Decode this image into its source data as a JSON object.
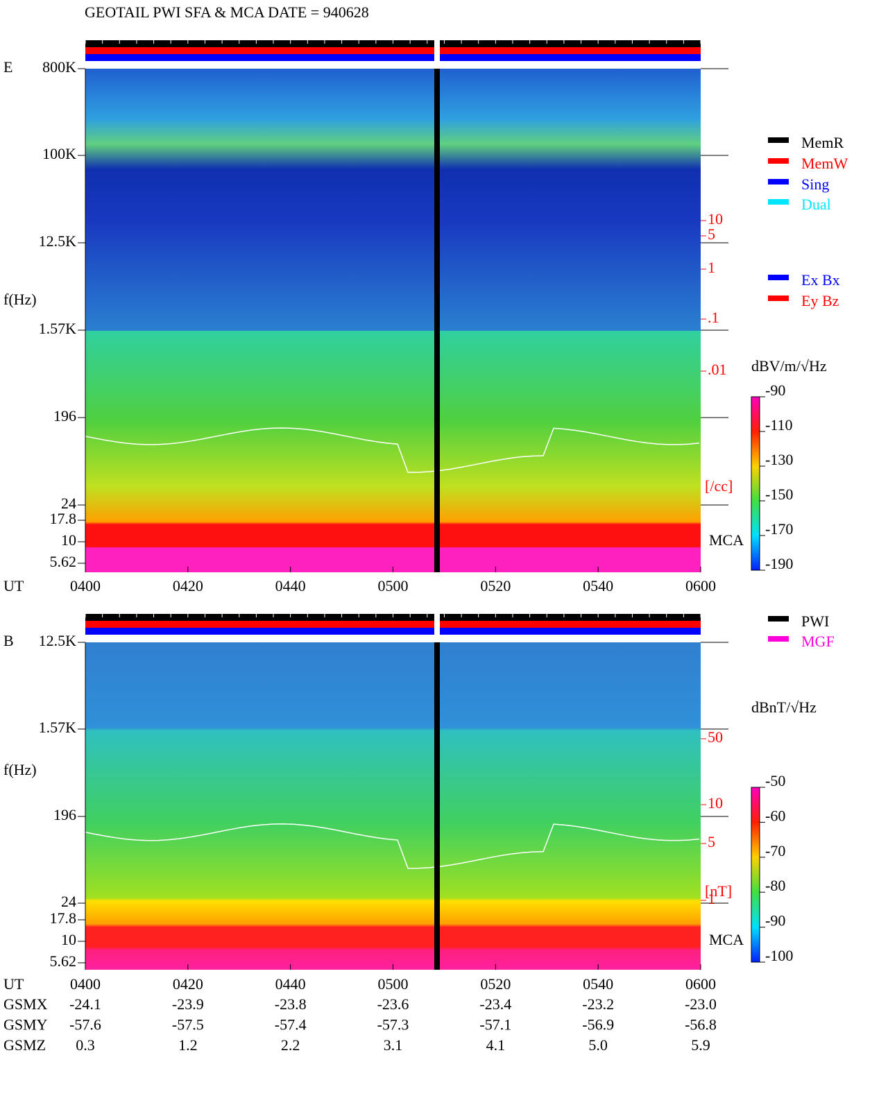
{
  "chart_data": {
    "type": "spectrogram",
    "title": "GEOTAIL  PWI SFA & MCA   DATE = 940628",
    "xlabel": "UT",
    "xticks": [
      "0400",
      "0420",
      "0440",
      "0500",
      "0520",
      "0540",
      "0600"
    ],
    "panels": [
      {
        "label": "E",
        "ylabel": "f(Hz)",
        "yticks": [
          "800K",
          "100K",
          "12.5K",
          "1.57K",
          "196",
          "24",
          "17.8",
          "10",
          "5.62"
        ],
        "density_ticks": [
          "10",
          "5",
          "1",
          ".1",
          ".01"
        ],
        "density_unit": "[/cc]",
        "mca": "MCA",
        "legend": [
          {
            "name": "MemR",
            "color": "#000000"
          },
          {
            "name": "MemW",
            "color": "#ff0000"
          },
          {
            "name": "Sing",
            "color": "#0000ff"
          },
          {
            "name": "Dual",
            "color": "#00e5ff"
          }
        ],
        "legend2": [
          {
            "name": "Ex Bx",
            "color": "#0000ff"
          },
          {
            "name": "Ey Bz",
            "color": "#ff0000"
          }
        ],
        "colorbar": {
          "title": "dBV/m/√Hz",
          "clim": [
            -90,
            -190
          ],
          "ticks": [
            -90,
            -110,
            -130,
            -150,
            -170,
            -190
          ]
        }
      },
      {
        "label": "B",
        "ylabel": "f(Hz)",
        "yticks": [
          "12.5K",
          "1.57K",
          "196",
          "24",
          "17.8",
          "10",
          "5.62"
        ],
        "density_ticks": [
          "50",
          "10",
          "5",
          "1"
        ],
        "density_unit": "[nT]",
        "mca": "MCA",
        "legend": [
          {
            "name": "PWI",
            "color": "#000000"
          },
          {
            "name": "MGF",
            "color": "#ff00dd"
          }
        ],
        "colorbar": {
          "title": "dBnT/√Hz",
          "clim": [
            -50,
            -100
          ],
          "ticks": [
            -50,
            -60,
            -70,
            -80,
            -90,
            -100
          ]
        }
      }
    ],
    "orbit": [
      {
        "label": "GSMX",
        "values": [
          "-24.1",
          "-23.9",
          "-23.8",
          "-23.6",
          "-23.4",
          "-23.2",
          "-23.0"
        ]
      },
      {
        "label": "GSMY",
        "values": [
          "-57.6",
          "-57.5",
          "-57.4",
          "-57.3",
          "-57.1",
          "-56.9",
          "-56.8"
        ]
      },
      {
        "label": "GSMZ",
        "values": [
          "0.3",
          "1.2",
          "2.2",
          "3.1",
          "4.1",
          "5.0",
          "5.9"
        ]
      }
    ]
  }
}
